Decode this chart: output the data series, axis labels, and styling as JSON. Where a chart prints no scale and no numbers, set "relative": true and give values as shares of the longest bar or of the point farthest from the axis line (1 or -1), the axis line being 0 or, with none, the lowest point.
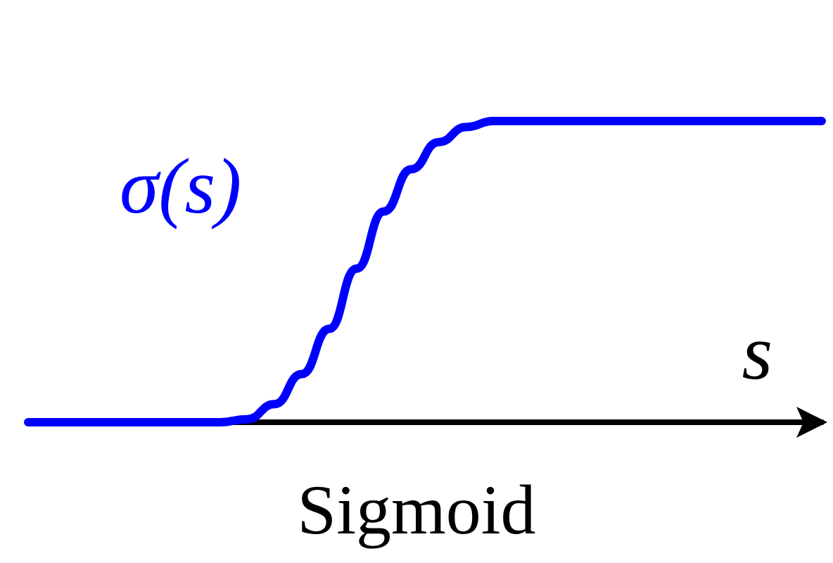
{
  "chart_data": {
    "type": "line",
    "title": "Sigmoid",
    "xlabel": "s",
    "relative": true,
    "legend": false,
    "grid": false,
    "marker": "none",
    "line_style": "solid",
    "categories": [
      null,
      null,
      null,
      null,
      null,
      null,
      null,
      null,
      null,
      null,
      null,
      null,
      null,
      null,
      null,
      null,
      null,
      null,
      null,
      null,
      null,
      null,
      null,
      null,
      null,
      null,
      null,
      null,
      null,
      null
    ],
    "series": [
      {
        "name": "σ(s)",
        "color": "#0000ff",
        "values": [
          0,
          0,
          0,
          0,
          0,
          0,
          0,
          0,
          0.01,
          0.06,
          0.16,
          0.31,
          0.51,
          0.7,
          0.84,
          0.93,
          0.98,
          1,
          1,
          1,
          1,
          1,
          1,
          1,
          1,
          1,
          1,
          1,
          1,
          1
        ]
      }
    ]
  }
}
